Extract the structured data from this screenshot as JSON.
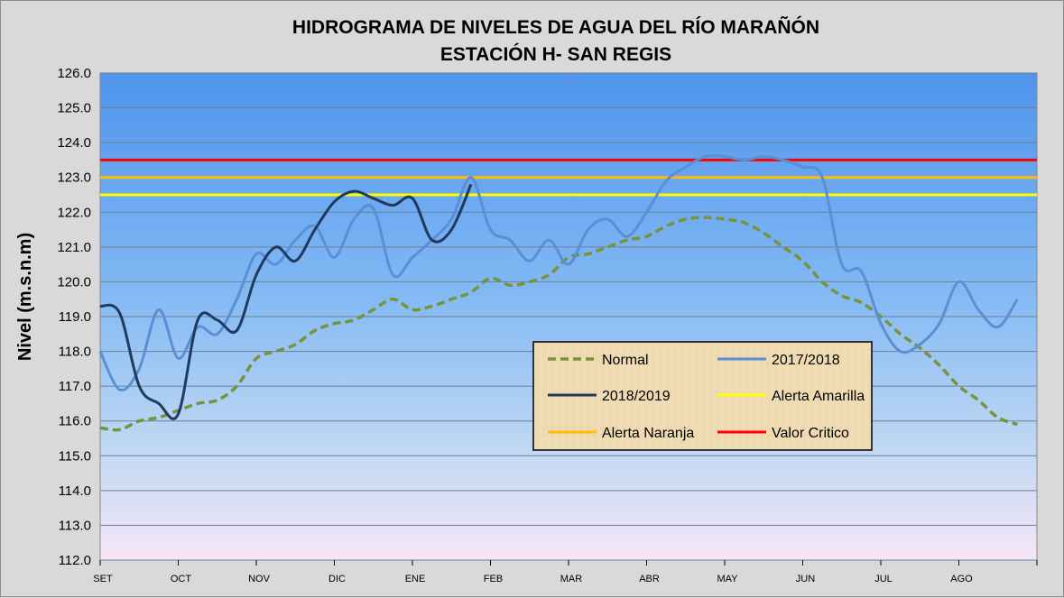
{
  "chart_data": {
    "type": "line",
    "title": "HIDROGRAMA DE NIVELES DE AGUA DEL RÍO MARAÑÓN",
    "subtitle": "ESTACIÓN H- SAN REGIS",
    "xlabel": "",
    "ylabel": "Nivel (m.s.n.m)",
    "ylim": [
      112.0,
      126.0
    ],
    "yticks": [
      "112.0",
      "113.0",
      "114.0",
      "115.0",
      "116.0",
      "117.0",
      "118.0",
      "119.0",
      "120.0",
      "121.0",
      "122.0",
      "123.0",
      "124.0",
      "125.0",
      "126.0"
    ],
    "months": [
      "SET",
      "OCT",
      "NOV",
      "DIC",
      "ENE",
      "FEB",
      "MAR",
      "ABR",
      "MAY",
      "JUN",
      "JUL",
      "AGO"
    ],
    "grid": true,
    "legend_position": "inside-lower-center",
    "series": [
      {
        "name": "Normal",
        "color": "#77933c",
        "style": "dashed",
        "x": [
          0,
          0.25,
          0.5,
          0.75,
          1,
          1.25,
          1.5,
          1.75,
          2,
          2.25,
          2.5,
          2.75,
          3,
          3.25,
          3.5,
          3.75,
          4,
          4.25,
          4.5,
          4.75,
          5,
          5.25,
          5.5,
          5.75,
          6,
          6.25,
          6.5,
          6.75,
          7,
          7.25,
          7.5,
          7.75,
          8,
          8.25,
          8.5,
          8.75,
          9,
          9.25,
          9.5,
          9.75,
          10,
          10.25,
          10.5,
          10.75,
          11,
          11.25,
          11.5,
          11.75
        ],
        "y": [
          115.8,
          115.75,
          116.0,
          116.1,
          116.3,
          116.5,
          116.6,
          117.0,
          117.8,
          118.0,
          118.2,
          118.6,
          118.8,
          118.9,
          119.2,
          119.5,
          119.2,
          119.3,
          119.5,
          119.7,
          120.1,
          119.9,
          120.0,
          120.2,
          120.7,
          120.8,
          121.0,
          121.2,
          121.3,
          121.6,
          121.8,
          121.85,
          121.8,
          121.7,
          121.4,
          121.0,
          120.6,
          120.0,
          119.6,
          119.4,
          119.0,
          118.5,
          118.1,
          117.6,
          117.0,
          116.6,
          116.1,
          115.9
        ]
      },
      {
        "name": "2017/2018",
        "color": "#5b8fd4",
        "style": "solid",
        "x": [
          0,
          0.25,
          0.5,
          0.75,
          1,
          1.25,
          1.5,
          1.75,
          2,
          2.25,
          2.5,
          2.75,
          3,
          3.25,
          3.5,
          3.75,
          4,
          4.25,
          4.5,
          4.75,
          5,
          5.25,
          5.5,
          5.75,
          6,
          6.25,
          6.5,
          6.75,
          7,
          7.25,
          7.5,
          7.75,
          8,
          8.25,
          8.5,
          8.75,
          9,
          9.25,
          9.5,
          9.75,
          10,
          10.25,
          10.5,
          10.75,
          11,
          11.25,
          11.5,
          11.75
        ],
        "y": [
          118.0,
          116.9,
          117.5,
          119.2,
          117.8,
          118.7,
          118.5,
          119.5,
          120.8,
          120.5,
          121.2,
          121.6,
          120.7,
          121.8,
          122.1,
          120.2,
          120.7,
          121.2,
          121.8,
          123.0,
          121.5,
          121.2,
          120.6,
          121.2,
          120.5,
          121.5,
          121.8,
          121.3,
          122.0,
          122.9,
          123.3,
          123.6,
          123.6,
          123.5,
          123.6,
          123.5,
          123.3,
          123.0,
          120.5,
          120.3,
          118.8,
          118.0,
          118.2,
          118.8,
          120.0,
          119.2,
          118.7,
          119.5
        ]
      },
      {
        "name": "2018/2019",
        "color": "#1f3a5f",
        "style": "solid",
        "x": [
          0,
          0.25,
          0.5,
          0.75,
          1,
          1.25,
          1.5,
          1.75,
          2,
          2.25,
          2.5,
          2.75,
          3,
          3.25,
          3.5,
          3.75,
          4,
          4.25,
          4.5,
          4.75
        ],
        "y": [
          119.3,
          119.1,
          117.0,
          116.5,
          116.2,
          118.9,
          118.9,
          118.6,
          120.2,
          121.0,
          120.6,
          121.5,
          122.3,
          122.6,
          122.4,
          122.2,
          122.4,
          121.2,
          121.5,
          122.8
        ]
      }
    ],
    "thresholds": [
      {
        "name": "Alerta Amarilla",
        "value": 122.5,
        "color": "#ffff00"
      },
      {
        "name": "Alerta Naranja",
        "value": 123.0,
        "color": "#ffc000"
      },
      {
        "name": "Valor Critico",
        "value": 123.5,
        "color": "#ff0000"
      }
    ],
    "legend": [
      "Normal",
      "2017/2018",
      "2018/2019",
      "Alerta Amarilla",
      "Alerta Naranja",
      "Valor Critico"
    ]
  }
}
